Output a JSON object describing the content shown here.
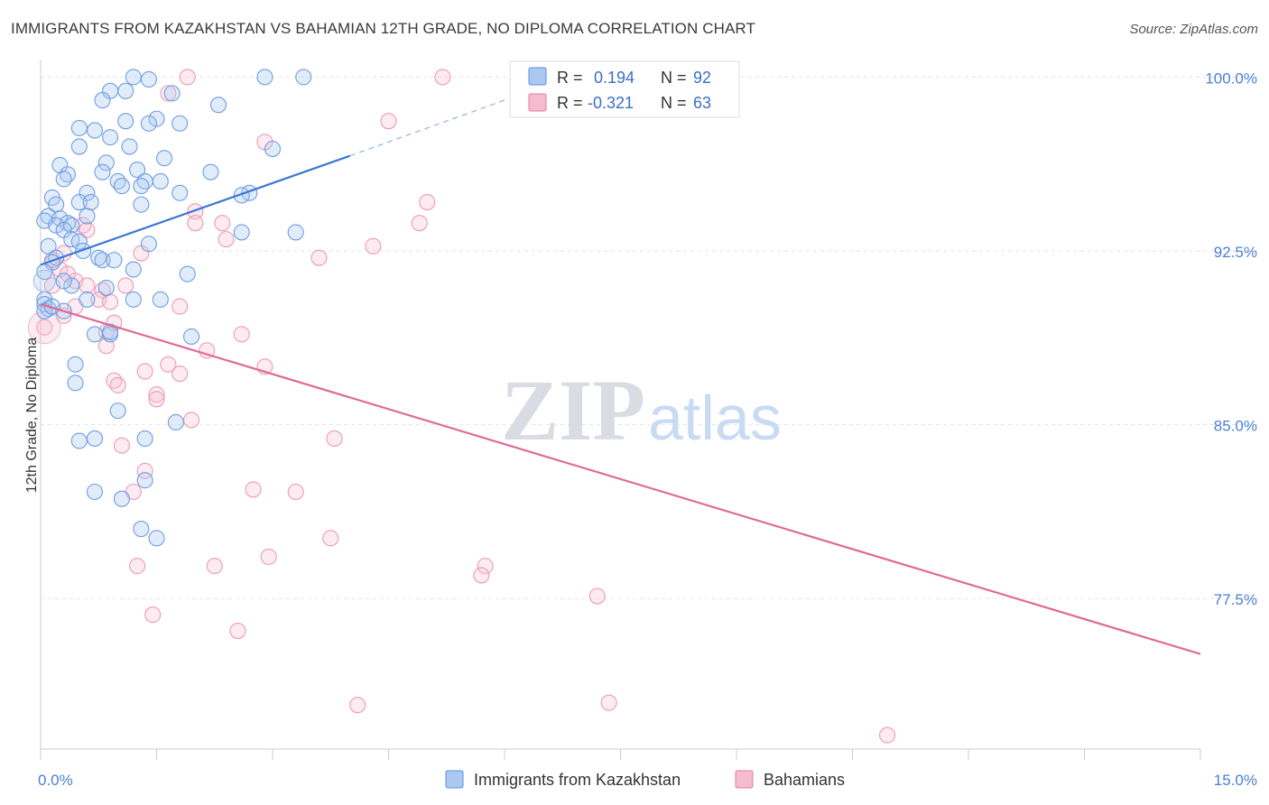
{
  "title": "IMMIGRANTS FROM KAZAKHSTAN VS BAHAMIAN 12TH GRADE, NO DIPLOMA CORRELATION CHART",
  "source": "Source: ZipAtlas.com",
  "watermark": {
    "zip": "ZIP",
    "atlas": "atlas"
  },
  "colors": {
    "blue": "#5b8fdf",
    "blue_fill": "#aac8f2",
    "pink": "#e879a0",
    "pink_fill": "#f5bcd0",
    "tick": "#4a7fd4",
    "grid": "#e6e6e6"
  },
  "stats": [
    {
      "r_label": "R =",
      "r_value": "0.194",
      "n_label": "N =",
      "n_value": "92"
    },
    {
      "r_label": "R =",
      "r_value": "-0.321",
      "n_label": "N =",
      "n_value": "63"
    }
  ],
  "chart_data": {
    "type": "scatter",
    "ylabel": "12th Grade, No Diploma",
    "xlim": [
      0,
      15
    ],
    "ylim": [
      71,
      100.6
    ],
    "x_tick_labels": [
      {
        "value": 0,
        "label": "0.0%"
      },
      {
        "value": 15,
        "label": "15.0%"
      }
    ],
    "y_tick_labels": [
      {
        "value": 100,
        "label": "100.0%"
      },
      {
        "value": 92.5,
        "label": "92.5%"
      },
      {
        "value": 85,
        "label": "85.0%"
      },
      {
        "value": 77.5,
        "label": "77.5%"
      }
    ],
    "legend": [
      "Immigrants from Kazakhstan",
      "Bahamians"
    ],
    "series": [
      {
        "name": "Immigrants from Kazakhstan",
        "trend": {
          "x0": 0,
          "y0": 91.9,
          "x1": 4.0,
          "y1": 96.6,
          "dash_to_x": 6.0,
          "dash_to_y": 99.0
        },
        "points": [
          [
            1.2,
            100.0
          ],
          [
            1.4,
            99.9
          ],
          [
            2.9,
            100.0
          ],
          [
            3.4,
            100.0
          ],
          [
            0.9,
            99.4
          ],
          [
            1.1,
            99.4
          ],
          [
            1.7,
            99.3
          ],
          [
            0.8,
            99.0
          ],
          [
            2.3,
            98.8
          ],
          [
            1.5,
            98.2
          ],
          [
            1.1,
            98.1
          ],
          [
            1.4,
            98.0
          ],
          [
            1.8,
            98.0
          ],
          [
            0.5,
            97.8
          ],
          [
            0.7,
            97.7
          ],
          [
            0.9,
            97.4
          ],
          [
            0.5,
            97.0
          ],
          [
            1.15,
            97.0
          ],
          [
            3.0,
            96.9
          ],
          [
            1.6,
            96.5
          ],
          [
            0.25,
            96.2
          ],
          [
            0.85,
            96.3
          ],
          [
            1.25,
            96.0
          ],
          [
            0.8,
            95.9
          ],
          [
            2.2,
            95.9
          ],
          [
            0.35,
            95.8
          ],
          [
            0.3,
            95.6
          ],
          [
            1.0,
            95.5
          ],
          [
            1.35,
            95.5
          ],
          [
            1.05,
            95.3
          ],
          [
            1.55,
            95.5
          ],
          [
            1.3,
            95.3
          ],
          [
            0.6,
            95.0
          ],
          [
            1.8,
            95.0
          ],
          [
            2.7,
            95.0
          ],
          [
            2.6,
            94.9
          ],
          [
            0.15,
            94.8
          ],
          [
            0.5,
            94.6
          ],
          [
            0.2,
            94.5
          ],
          [
            0.65,
            94.6
          ],
          [
            1.3,
            94.5
          ],
          [
            0.1,
            94.0
          ],
          [
            0.25,
            93.9
          ],
          [
            0.6,
            94.0
          ],
          [
            0.05,
            93.8
          ],
          [
            0.35,
            93.7
          ],
          [
            0.2,
            93.6
          ],
          [
            0.4,
            93.6
          ],
          [
            0.3,
            93.4
          ],
          [
            2.6,
            93.3
          ],
          [
            3.3,
            93.3
          ],
          [
            0.4,
            93.0
          ],
          [
            0.5,
            92.9
          ],
          [
            1.4,
            92.8
          ],
          [
            0.1,
            92.7
          ],
          [
            0.55,
            92.5
          ],
          [
            0.2,
            92.2
          ],
          [
            0.75,
            92.2
          ],
          [
            0.8,
            92.1
          ],
          [
            0.95,
            92.1
          ],
          [
            0.15,
            92.0
          ],
          [
            0.05,
            91.6
          ],
          [
            1.2,
            91.7
          ],
          [
            1.9,
            91.5
          ],
          [
            0.4,
            91.0
          ],
          [
            0.85,
            90.9
          ],
          [
            0.05,
            90.4
          ],
          [
            0.6,
            90.4
          ],
          [
            1.2,
            90.4
          ],
          [
            1.55,
            90.4
          ],
          [
            0.05,
            90.2
          ],
          [
            0.1,
            90.0
          ],
          [
            0.3,
            89.9
          ],
          [
            0.9,
            88.9
          ],
          [
            0.7,
            88.9
          ],
          [
            1.95,
            88.8
          ],
          [
            0.45,
            87.6
          ],
          [
            0.45,
            86.8
          ],
          [
            1.0,
            85.6
          ],
          [
            1.75,
            85.1
          ],
          [
            0.5,
            84.3
          ],
          [
            0.7,
            84.4
          ],
          [
            1.35,
            84.4
          ],
          [
            1.35,
            82.6
          ],
          [
            0.7,
            82.1
          ],
          [
            1.05,
            81.8
          ],
          [
            1.3,
            80.5
          ],
          [
            1.5,
            80.1
          ],
          [
            0.05,
            89.9
          ],
          [
            0.15,
            90.1
          ],
          [
            0.9,
            89.0
          ],
          [
            0.3,
            91.2
          ]
        ]
      },
      {
        "name": "Bahamians",
        "trend": {
          "x0": 0,
          "y0": 90.2,
          "x1": 15.0,
          "y1": 75.1
        },
        "points": [
          [
            1.9,
            100.0
          ],
          [
            5.2,
            100.0
          ],
          [
            1.65,
            99.3
          ],
          [
            4.5,
            98.1
          ],
          [
            2.9,
            97.2
          ],
          [
            5.0,
            94.6
          ],
          [
            2.0,
            94.2
          ],
          [
            0.55,
            93.6
          ],
          [
            2.35,
            93.7
          ],
          [
            4.9,
            93.7
          ],
          [
            2.0,
            93.7
          ],
          [
            2.4,
            93.0
          ],
          [
            4.3,
            92.7
          ],
          [
            0.3,
            92.4
          ],
          [
            1.3,
            92.4
          ],
          [
            3.6,
            92.2
          ],
          [
            0.15,
            92.1
          ],
          [
            0.25,
            91.7
          ],
          [
            0.35,
            91.5
          ],
          [
            0.45,
            91.2
          ],
          [
            0.15,
            91.0
          ],
          [
            0.6,
            91.0
          ],
          [
            0.8,
            90.8
          ],
          [
            0.75,
            90.4
          ],
          [
            0.9,
            90.3
          ],
          [
            1.8,
            90.1
          ],
          [
            0.45,
            90.1
          ],
          [
            0.3,
            89.7
          ],
          [
            0.05,
            89.2
          ],
          [
            0.85,
            89.0
          ],
          [
            2.6,
            88.9
          ],
          [
            0.85,
            88.4
          ],
          [
            2.15,
            88.2
          ],
          [
            1.65,
            87.6
          ],
          [
            2.9,
            87.5
          ],
          [
            1.35,
            87.3
          ],
          [
            1.8,
            87.2
          ],
          [
            0.95,
            86.9
          ],
          [
            1.0,
            86.7
          ],
          [
            1.5,
            86.3
          ],
          [
            1.5,
            86.1
          ],
          [
            1.95,
            85.2
          ],
          [
            3.8,
            84.4
          ],
          [
            1.05,
            84.1
          ],
          [
            1.35,
            83.0
          ],
          [
            1.2,
            82.1
          ],
          [
            2.75,
            82.2
          ],
          [
            3.3,
            82.1
          ],
          [
            3.75,
            80.1
          ],
          [
            2.95,
            79.3
          ],
          [
            1.25,
            78.9
          ],
          [
            2.25,
            78.9
          ],
          [
            5.75,
            78.9
          ],
          [
            5.7,
            78.5
          ],
          [
            7.2,
            77.6
          ],
          [
            1.45,
            76.8
          ],
          [
            2.55,
            76.1
          ],
          [
            4.1,
            72.9
          ],
          [
            7.35,
            73.0
          ],
          [
            10.95,
            71.6
          ],
          [
            1.1,
            91.0
          ],
          [
            0.6,
            93.4
          ],
          [
            0.95,
            89.4
          ]
        ]
      }
    ]
  }
}
